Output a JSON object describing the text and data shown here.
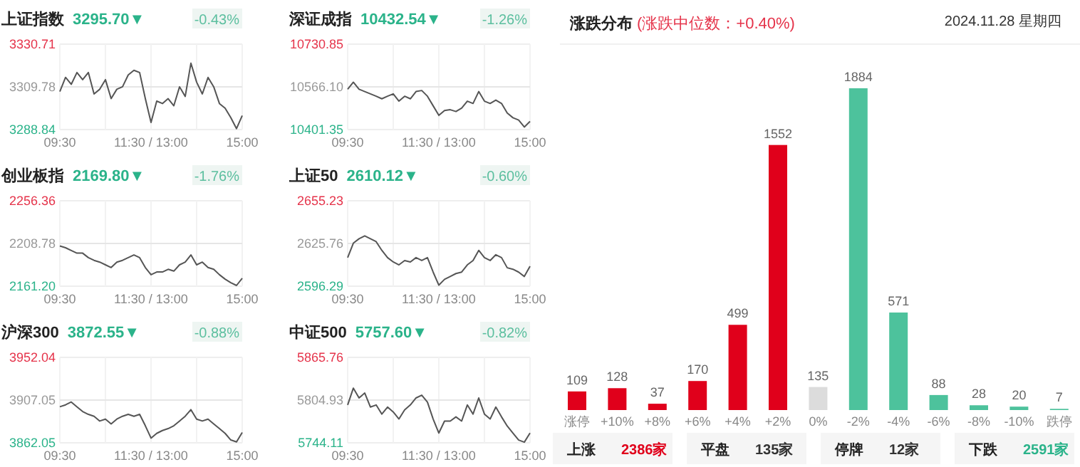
{
  "chart_data": [
    {
      "type": "line",
      "title": "上证指数",
      "subtitle": "3295.70▼",
      "annotations": [
        "-0.43%"
      ],
      "color": "#555555",
      "grid": true,
      "ref_lines": [
        {
          "axis": "y",
          "value": 3309.78
        }
      ],
      "ylim": [
        3288.84,
        3330.71
      ],
      "yticks": [
        {
          "value": 3288.84,
          "label": "3288.84"
        },
        {
          "value": 3309.78,
          "label": "3309.78"
        },
        {
          "value": 3330.71,
          "label": "3330.71"
        }
      ],
      "categories": [
        "09:30",
        null,
        null,
        null,
        null,
        null,
        null,
        null,
        null,
        null,
        null,
        null,
        null,
        null,
        null,
        null,
        "11:30 / 13:00",
        null,
        null,
        null,
        null,
        null,
        null,
        null,
        null,
        null,
        null,
        null,
        null,
        null,
        null,
        null,
        "15:00"
      ],
      "values": [
        3307.5,
        3314.4,
        3311.0,
        3316.8,
        3313.3,
        3316.8,
        3306.3,
        3308.6,
        3313.3,
        3304.0,
        3308.6,
        3309.8,
        3315.6,
        3317.9,
        3316.8,
        3304.0,
        3292.3,
        3302.8,
        3301.6,
        3304.0,
        3300.5,
        3309.8,
        3305.1,
        3321.4,
        3312.1,
        3306.3,
        3314.4,
        3309.8,
        3301.6,
        3299.3,
        3294.7,
        3289.3,
        3295.7
      ]
    },
    {
      "type": "line",
      "title": "深证成指",
      "subtitle": "10432.54▼",
      "annotations": [
        "-1.26%"
      ],
      "color": "#555555",
      "grid": true,
      "ref_lines": [
        {
          "axis": "y",
          "value": 10566.1
        }
      ],
      "ylim": [
        10401.35,
        10730.85
      ],
      "yticks": [
        {
          "value": 10401.35,
          "label": "10401.35"
        },
        {
          "value": 10566.1,
          "label": "10566.10"
        },
        {
          "value": 10730.85,
          "label": "10730.85"
        }
      ],
      "categories": [
        "09:30",
        null,
        null,
        null,
        null,
        null,
        null,
        null,
        null,
        null,
        null,
        null,
        null,
        null,
        null,
        null,
        "11:30 / 13:00",
        null,
        null,
        null,
        null,
        null,
        null,
        null,
        null,
        null,
        null,
        null,
        null,
        null,
        null,
        null,
        "15:00"
      ],
      "values": [
        10557,
        10584,
        10557,
        10548,
        10539,
        10530,
        10520,
        10530,
        10539,
        10511,
        10530,
        10520,
        10548,
        10552,
        10530,
        10493,
        10456,
        10475,
        10478,
        10471,
        10484,
        10511,
        10502,
        10548,
        10511,
        10502,
        10515,
        10502,
        10465,
        10447,
        10438,
        10411,
        10433
      ]
    },
    {
      "type": "line",
      "title": "创业板指",
      "subtitle": "2169.80▼",
      "annotations": [
        "-1.76%"
      ],
      "color": "#555555",
      "grid": true,
      "ref_lines": [
        {
          "axis": "y",
          "value": 2208.78
        }
      ],
      "ylim": [
        2161.2,
        2256.36
      ],
      "yticks": [
        {
          "value": 2161.2,
          "label": "2161.20"
        },
        {
          "value": 2208.78,
          "label": "2208.78"
        },
        {
          "value": 2256.36,
          "label": "2256.36"
        }
      ],
      "categories": [
        "09:30",
        null,
        null,
        null,
        null,
        null,
        null,
        null,
        null,
        null,
        null,
        null,
        null,
        null,
        null,
        null,
        "11:30 / 13:00",
        null,
        null,
        null,
        null,
        null,
        null,
        null,
        null,
        null,
        null,
        null,
        null,
        null,
        null,
        null,
        "15:00"
      ],
      "values": [
        2206,
        2204,
        2201,
        2198,
        2198,
        2193,
        2190,
        2188,
        2185,
        2182,
        2188,
        2190,
        2193,
        2196,
        2193,
        2182,
        2174,
        2177,
        2177,
        2180,
        2178,
        2185,
        2188,
        2196,
        2185,
        2188,
        2182,
        2180,
        2174,
        2169,
        2165,
        2162,
        2170
      ]
    },
    {
      "type": "line",
      "title": "上证50",
      "subtitle": "2610.12▼",
      "annotations": [
        "-0.60%"
      ],
      "color": "#555555",
      "grid": true,
      "ref_lines": [
        {
          "axis": "y",
          "value": 2625.76
        }
      ],
      "ylim": [
        2596.29,
        2655.23
      ],
      "yticks": [
        {
          "value": 2596.29,
          "label": "2596.29"
        },
        {
          "value": 2625.76,
          "label": "2625.76"
        },
        {
          "value": 2655.23,
          "label": "2655.23"
        }
      ],
      "categories": [
        "09:30",
        null,
        null,
        null,
        null,
        null,
        null,
        null,
        null,
        null,
        null,
        null,
        null,
        null,
        null,
        null,
        "11:30 / 13:00",
        null,
        null,
        null,
        null,
        null,
        null,
        null,
        null,
        null,
        null,
        null,
        null,
        null,
        null,
        null,
        "15:00"
      ],
      "values": [
        2616,
        2626,
        2629,
        2631,
        2629,
        2627,
        2621,
        2616,
        2613,
        2611,
        2614,
        2613,
        2616,
        2614,
        2616,
        2606,
        2597,
        2601,
        2603,
        2605,
        2606,
        2611,
        2614,
        2621,
        2616,
        2614,
        2618,
        2616,
        2609,
        2608,
        2606,
        2603,
        2610
      ]
    },
    {
      "type": "line",
      "title": "沪深300",
      "subtitle": "3872.55▼",
      "annotations": [
        "-0.88%"
      ],
      "color": "#555555",
      "grid": true,
      "ref_lines": [
        {
          "axis": "y",
          "value": 3907.05
        }
      ],
      "ylim": [
        3862.05,
        3952.04
      ],
      "yticks": [
        {
          "value": 3862.05,
          "label": "3862.05"
        },
        {
          "value": 3907.05,
          "label": "3907.05"
        },
        {
          "value": 3952.04,
          "label": "3952.04"
        }
      ],
      "categories": [
        "09:30",
        null,
        null,
        null,
        null,
        null,
        null,
        null,
        null,
        null,
        null,
        null,
        null,
        null,
        null,
        null,
        "11:30 / 13:00",
        null,
        null,
        null,
        null,
        null,
        null,
        null,
        null,
        null,
        null,
        null,
        null,
        null,
        null,
        null,
        "15:00"
      ],
      "values": [
        3900,
        3902,
        3905,
        3900,
        3895,
        3892,
        3890,
        3885,
        3887,
        3882,
        3887,
        3890,
        3892,
        3890,
        3892,
        3880,
        3867,
        3872,
        3875,
        3877,
        3880,
        3885,
        3890,
        3897,
        3887,
        3885,
        3887,
        3882,
        3877,
        3872,
        3865,
        3863,
        3873
      ]
    },
    {
      "type": "line",
      "title": "中证500",
      "subtitle": "5757.60▼",
      "annotations": [
        "-0.82%"
      ],
      "color": "#555555",
      "grid": true,
      "ref_lines": [
        {
          "axis": "y",
          "value": 5804.93
        }
      ],
      "ylim": [
        5744.11,
        5865.76
      ],
      "yticks": [
        {
          "value": 5744.11,
          "label": "5744.11"
        },
        {
          "value": 5804.93,
          "label": "5804.93"
        },
        {
          "value": 5865.76,
          "label": "5865.76"
        }
      ],
      "categories": [
        "09:30",
        null,
        null,
        null,
        null,
        null,
        null,
        null,
        null,
        null,
        null,
        null,
        null,
        null,
        null,
        null,
        "11:30 / 13:00",
        null,
        null,
        null,
        null,
        null,
        null,
        null,
        null,
        null,
        null,
        null,
        null,
        null,
        null,
        null,
        "15:00"
      ],
      "values": [
        5798,
        5822,
        5808,
        5815,
        5795,
        5798,
        5785,
        5795,
        5788,
        5778,
        5791,
        5798,
        5808,
        5812,
        5802,
        5778,
        5758,
        5775,
        5775,
        5781,
        5775,
        5798,
        5785,
        5808,
        5785,
        5778,
        5795,
        5781,
        5768,
        5758,
        5748,
        5745,
        5758
      ]
    },
    {
      "type": "bar",
      "title": "涨跌分布",
      "subtitle": "(涨跌中位数：+0.40%)",
      "annotations": [
        "2024.11.28 星期四",
        "上涨",
        "2386家",
        "平盘",
        "135家",
        "停牌",
        "12家",
        "下跌",
        "2591家"
      ],
      "categories": [
        "涨停",
        "+10%",
        "+8%",
        "+6%",
        "+4%",
        "+2%",
        "0%",
        "-2%",
        "-4%",
        "-6%",
        "-8%",
        "-10%",
        "跌停"
      ],
      "values": [
        109,
        128,
        37,
        170,
        499,
        1552,
        135,
        1884,
        571,
        88,
        28,
        20,
        7
      ],
      "colors": [
        "#e0001b",
        "#e0001b",
        "#e0001b",
        "#e0001b",
        "#e0001b",
        "#e0001b",
        "#dcdcdc",
        "#4dc29c",
        "#4dc29c",
        "#4dc29c",
        "#4dc29c",
        "#4dc29c",
        "#4dc29c"
      ],
      "data_labels": true
    }
  ]
}
